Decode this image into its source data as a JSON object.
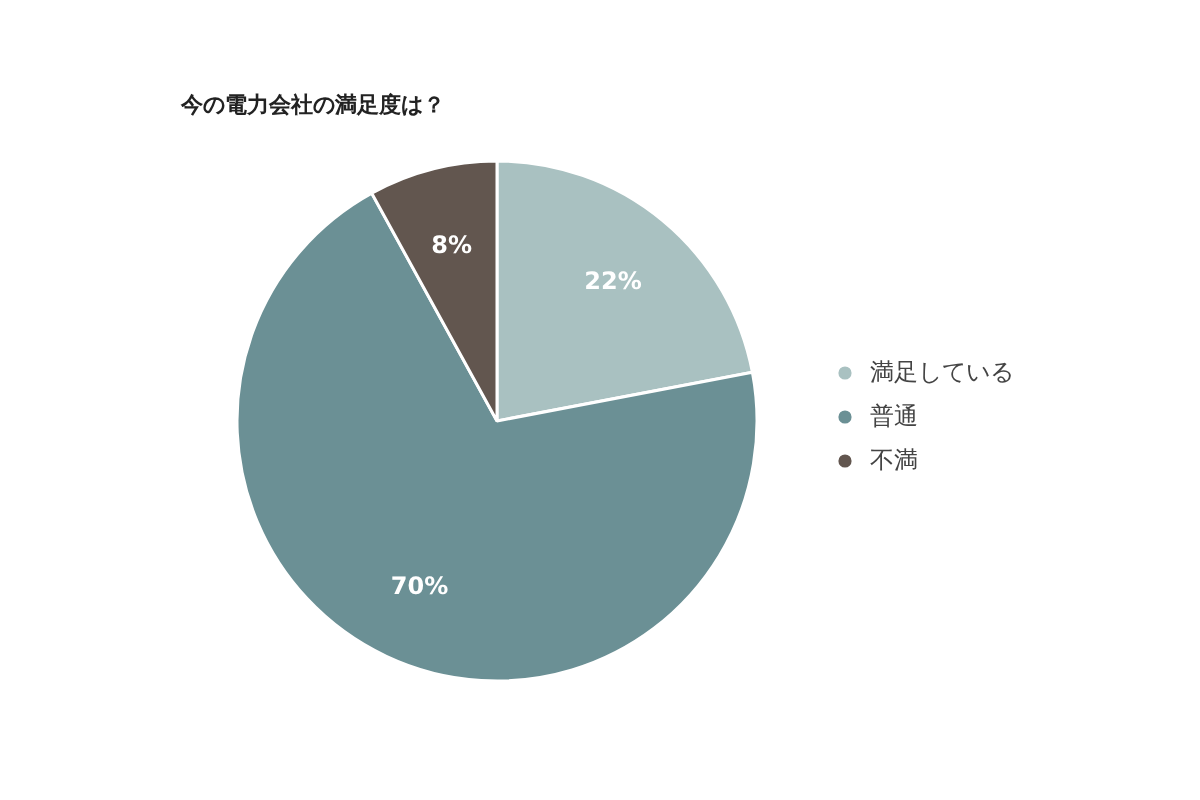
{
  "chart_data": {
    "type": "pie",
    "title": "今の電力会社の満足度は？",
    "categories": [
      "満足している",
      "普通",
      "不満"
    ],
    "values": [
      22,
      70,
      8
    ],
    "value_labels": [
      "22%",
      "70%",
      "8%"
    ],
    "colors": [
      "#a9c1c1",
      "#6b9095",
      "#62564f"
    ],
    "legend": "right"
  }
}
